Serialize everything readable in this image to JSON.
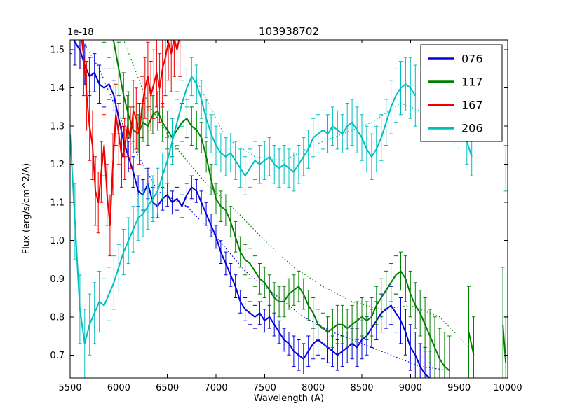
{
  "chart_data": {
    "type": "line",
    "title": "103938702",
    "xlabel": "Wavelength (A)",
    "ylabel": "Flux (erg/s/cm^2/A)",
    "offset_label": "1e-18",
    "xlim": [
      5500,
      10000
    ],
    "ylim": [
      0.64,
      1.526
    ],
    "xticks": [
      5500,
      6000,
      6500,
      7000,
      7500,
      8000,
      8500,
      9000,
      9500,
      10000
    ],
    "yticks": [
      0.7,
      0.8,
      0.9,
      1.0,
      1.1,
      1.2,
      1.3,
      1.4,
      1.5
    ],
    "grid": false,
    "legend_position": "upper right",
    "series": [
      {
        "name": "076",
        "color": "#0000dd",
        "segments": [
          {
            "x0": 5500,
            "dx": 50,
            "y": [
              1.55,
              1.52,
              1.5,
              1.46,
              1.43,
              1.44,
              1.41,
              1.4,
              1.41,
              1.38,
              1.32,
              1.26,
              1.22,
              1.18,
              1.13,
              1.12,
              1.15,
              1.1,
              1.09,
              1.11,
              1.12,
              1.1,
              1.11,
              1.09,
              1.12,
              1.14,
              1.13,
              1.1,
              1.07,
              1.04,
              1.01,
              0.97,
              0.94,
              0.91,
              0.88,
              0.84,
              0.82,
              0.81,
              0.8,
              0.81,
              0.79,
              0.8,
              0.78,
              0.76,
              0.74,
              0.73,
              0.71,
              0.7,
              0.69,
              0.71,
              0.73,
              0.74,
              0.73,
              0.72,
              0.71,
              0.7,
              0.71,
              0.72,
              0.73,
              0.72,
              0.74,
              0.75,
              0.77,
              0.79,
              0.81,
              0.82,
              0.83,
              0.81,
              0.79,
              0.76,
              0.72,
              0.7,
              0.67,
              0.65,
              0.64
            ],
            "err": [
              0.06,
              0.06,
              0.05,
              0.05,
              0.05,
              0.05,
              0.05,
              0.05,
              0.04,
              0.04,
              0.04,
              0.04,
              0.04,
              0.04,
              0.04,
              0.04,
              0.04,
              0.04,
              0.03,
              0.03,
              0.03,
              0.03,
              0.03,
              0.03,
              0.03,
              0.03,
              0.03,
              0.03,
              0.03,
              0.03,
              0.03,
              0.03,
              0.03,
              0.03,
              0.03,
              0.03,
              0.03,
              0.03,
              0.03,
              0.03,
              0.03,
              0.03,
              0.03,
              0.03,
              0.03,
              0.03,
              0.04,
              0.04,
              0.04,
              0.04,
              0.04,
              0.04,
              0.04,
              0.04,
              0.04,
              0.04,
              0.04,
              0.04,
              0.04,
              0.05,
              0.05,
              0.05,
              0.05,
              0.05,
              0.05,
              0.05,
              0.05,
              0.05,
              0.06,
              0.06,
              0.06,
              0.06,
              0.06,
              0.07,
              0.07
            ]
          }
        ],
        "model": {
          "x0": 5500,
          "dx": 300,
          "y": [
            1.58,
            1.45,
            1.27,
            1.13,
            1.09,
            1.01,
            0.92,
            0.86,
            0.8,
            0.76,
            0.73,
            0.7,
            0.67,
            0.66
          ]
        }
      },
      {
        "name": "117",
        "color": "#008000",
        "segments": [
          {
            "x0": 5850,
            "dx": 50,
            "y": [
              1.6,
              1.56,
              1.52,
              1.45,
              1.38,
              1.33,
              1.29,
              1.28,
              1.31,
              1.3,
              1.33,
              1.34,
              1.31,
              1.29,
              1.27,
              1.29,
              1.31,
              1.32,
              1.3,
              1.29,
              1.27,
              1.22,
              1.16,
              1.11,
              1.09,
              1.08,
              1.05,
              1.01,
              0.97,
              0.95,
              0.94,
              0.92,
              0.9,
              0.89,
              0.87,
              0.85,
              0.84,
              0.84,
              0.86,
              0.87,
              0.88,
              0.86,
              0.83,
              0.81,
              0.78,
              0.77,
              0.76,
              0.77,
              0.78,
              0.78,
              0.77,
              0.78,
              0.79,
              0.8,
              0.79,
              0.8,
              0.83,
              0.85,
              0.87,
              0.89,
              0.91,
              0.92,
              0.9,
              0.86,
              0.83,
              0.81,
              0.78,
              0.75,
              0.72,
              0.69,
              0.67,
              0.66
            ],
            "err": [
              0.08,
              0.08,
              0.07,
              0.07,
              0.06,
              0.06,
              0.06,
              0.05,
              0.05,
              0.05,
              0.05,
              0.05,
              0.05,
              0.05,
              0.05,
              0.05,
              0.05,
              0.05,
              0.05,
              0.05,
              0.04,
              0.04,
              0.04,
              0.04,
              0.04,
              0.04,
              0.04,
              0.04,
              0.04,
              0.04,
              0.04,
              0.04,
              0.04,
              0.04,
              0.04,
              0.04,
              0.04,
              0.04,
              0.04,
              0.04,
              0.04,
              0.04,
              0.04,
              0.04,
              0.04,
              0.04,
              0.04,
              0.05,
              0.05,
              0.05,
              0.05,
              0.05,
              0.05,
              0.05,
              0.05,
              0.05,
              0.05,
              0.05,
              0.05,
              0.05,
              0.05,
              0.05,
              0.06,
              0.06,
              0.06,
              0.06,
              0.07,
              0.07,
              0.08,
              0.08,
              0.09,
              0.09
            ]
          },
          {
            "x0": 9600,
            "dx": 50,
            "y": [
              0.76,
              0.7
            ],
            "err": [
              0.12,
              0.1
            ]
          },
          {
            "x0": 9950,
            "dx": 30,
            "y": [
              0.78,
              0.68
            ],
            "err": [
              0.15,
              0.12
            ]
          }
        ],
        "model": {
          "x0": 6000,
          "dx": 300,
          "y": [
            1.56,
            1.36,
            1.24,
            1.15,
            1.08,
            1.0,
            0.93,
            0.88,
            0.84,
            0.82,
            0.83,
            0.8,
            0.72
          ]
        }
      },
      {
        "name": "167",
        "color": "#ee0000",
        "segments": [
          {
            "x0": 5610,
            "dx": 30,
            "y": [
              1.55,
              1.48,
              1.38,
              1.3,
              1.25,
              1.13,
              1.1,
              1.18,
              1.25,
              1.12,
              1.04,
              1.2,
              1.33,
              1.28,
              1.22,
              1.24,
              1.3,
              1.27,
              1.34,
              1.32,
              1.28,
              1.35,
              1.4,
              1.43,
              1.38,
              1.41,
              1.44,
              1.4,
              1.45,
              1.48,
              1.52,
              1.49,
              1.53,
              1.5,
              1.54
            ],
            "err": [
              0.1,
              0.1,
              0.09,
              0.09,
              0.09,
              0.09,
              0.08,
              0.08,
              0.08,
              0.08,
              0.08,
              0.08,
              0.08,
              0.08,
              0.08,
              0.08,
              0.08,
              0.08,
              0.08,
              0.08,
              0.08,
              0.08,
              0.08,
              0.09,
              0.09,
              0.09,
              0.09,
              0.09,
              0.1,
              0.1,
              0.1,
              0.1,
              0.1,
              0.11,
              0.11
            ]
          }
        ]
      },
      {
        "name": "206",
        "color": "#00bfbf",
        "segments": [
          {
            "x0": 5500,
            "dx": 50,
            "y": [
              1.28,
              1.05,
              0.82,
              0.73,
              0.78,
              0.81,
              0.84,
              0.83,
              0.86,
              0.89,
              0.93,
              0.97,
              1.0,
              1.03,
              1.06,
              1.07,
              1.09,
              1.11,
              1.13,
              1.17,
              1.21,
              1.26,
              1.31,
              1.36,
              1.4,
              1.43,
              1.41,
              1.37,
              1.32,
              1.28,
              1.25,
              1.23,
              1.22,
              1.23,
              1.21,
              1.19,
              1.17,
              1.19,
              1.21,
              1.2,
              1.21,
              1.22,
              1.2,
              1.19,
              1.2,
              1.19,
              1.18,
              1.2,
              1.22,
              1.24,
              1.27,
              1.28,
              1.29,
              1.28,
              1.3,
              1.29,
              1.28,
              1.3,
              1.31,
              1.29,
              1.27,
              1.24,
              1.22,
              1.24,
              1.27,
              1.31,
              1.35,
              1.38,
              1.4,
              1.41,
              1.4,
              1.38
            ],
            "err": [
              0.1,
              0.1,
              0.09,
              0.09,
              0.08,
              0.08,
              0.08,
              0.07,
              0.07,
              0.07,
              0.06,
              0.06,
              0.06,
              0.06,
              0.06,
              0.06,
              0.06,
              0.06,
              0.06,
              0.06,
              0.06,
              0.06,
              0.06,
              0.06,
              0.05,
              0.05,
              0.05,
              0.05,
              0.05,
              0.05,
              0.05,
              0.05,
              0.05,
              0.05,
              0.05,
              0.05,
              0.05,
              0.05,
              0.05,
              0.05,
              0.05,
              0.05,
              0.05,
              0.05,
              0.05,
              0.05,
              0.05,
              0.05,
              0.05,
              0.05,
              0.05,
              0.05,
              0.05,
              0.05,
              0.05,
              0.05,
              0.05,
              0.06,
              0.06,
              0.06,
              0.06,
              0.06,
              0.06,
              0.06,
              0.06,
              0.06,
              0.07,
              0.07,
              0.07,
              0.07,
              0.08,
              0.08
            ]
          },
          {
            "x0": 9580,
            "dx": 50,
            "y": [
              1.26,
              1.22
            ],
            "err": [
              0.06,
              0.05
            ]
          },
          {
            "x0": 9980,
            "dx": 20,
            "y": [
              1.19
            ],
            "err": [
              0.06
            ]
          }
        ],
        "model": {
          "x0": 6800,
          "dx": 300,
          "y": [
            1.42,
            1.27,
            1.22,
            1.21,
            1.25,
            1.28,
            1.31,
            1.36,
            1.33,
            1.24
          ]
        }
      }
    ]
  }
}
